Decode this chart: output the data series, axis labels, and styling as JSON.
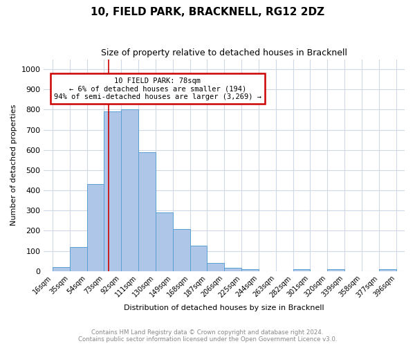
{
  "title": "10, FIELD PARK, BRACKNELL, RG12 2DZ",
  "subtitle": "Size of property relative to detached houses in Bracknell",
  "xlabel": "Distribution of detached houses by size in Bracknell",
  "ylabel": "Number of detached properties",
  "bin_labels": [
    "16sqm",
    "35sqm",
    "54sqm",
    "73sqm",
    "92sqm",
    "111sqm",
    "130sqm",
    "149sqm",
    "168sqm",
    "187sqm",
    "206sqm",
    "225sqm",
    "244sqm",
    "263sqm",
    "282sqm",
    "301sqm",
    "320sqm",
    "339sqm",
    "358sqm",
    "377sqm",
    "396sqm"
  ],
  "bar_heights": [
    20,
    120,
    430,
    790,
    800,
    590,
    290,
    210,
    125,
    40,
    15,
    10,
    0,
    0,
    10,
    0,
    8,
    0,
    0,
    8
  ],
  "bar_color": "#aec6e8",
  "bar_edge_color": "#5a9fd4",
  "grid_color": "#d0d8e8",
  "annotation_text_line1": "10 FIELD PARK: 78sqm",
  "annotation_text_line2": "← 6% of detached houses are smaller (194)",
  "annotation_text_line3": "94% of semi-detached houses are larger (3,269) →",
  "annotation_box_color": "#ffffff",
  "annotation_box_edge": "#cc0000",
  "red_line_color": "#cc0000",
  "red_line_x": 78,
  "ylim": [
    0,
    1050
  ],
  "yticks": [
    0,
    100,
    200,
    300,
    400,
    500,
    600,
    700,
    800,
    900,
    1000
  ],
  "footnote": "Contains HM Land Registry data © Crown copyright and database right 2024.\nContains public sector information licensed under the Open Government Licence v3.0."
}
